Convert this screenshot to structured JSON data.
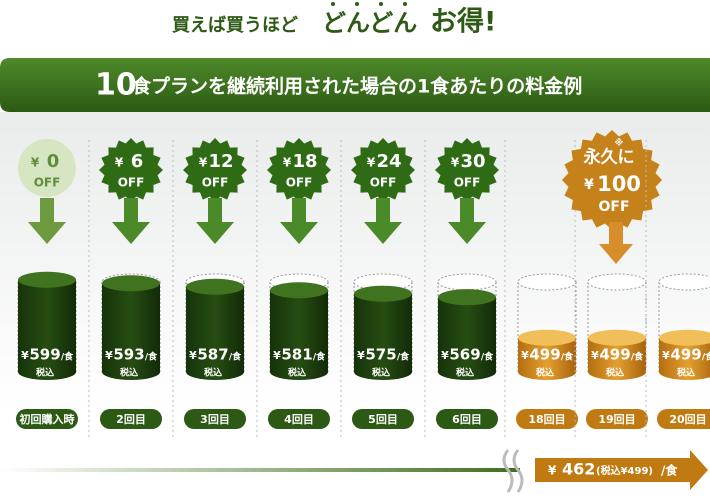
{
  "header": {
    "lead": "買えば買うほど",
    "emphasis": "どんどん",
    "tail": "お得!"
  },
  "banner": {
    "number": "10",
    "text": "食プランを継続利用された場合の1食あたりの料金例"
  },
  "currency": "¥",
  "off": "OFF",
  "per_meal": "/食",
  "tax_included": "税込",
  "items": [
    {
      "discount": 0,
      "price": 599,
      "round": "初回購入時"
    },
    {
      "discount": 6,
      "price": 593,
      "round": "2回目"
    },
    {
      "discount": 12,
      "price": 587,
      "round": "3回目"
    },
    {
      "discount": 18,
      "price": 581,
      "round": "4回目"
    },
    {
      "discount": 24,
      "price": 575,
      "round": "5回目"
    },
    {
      "discount": 30,
      "price": 569,
      "round": "6回目"
    },
    {
      "price": 499,
      "round": "18回目"
    },
    {
      "forever": "永久に",
      "note": "※",
      "discount": 100,
      "price": 499,
      "round": "19回目"
    },
    {
      "price": 499,
      "round": "20回目"
    }
  ],
  "footer": {
    "price": 462,
    "tax_note": "(税込¥499)"
  }
}
